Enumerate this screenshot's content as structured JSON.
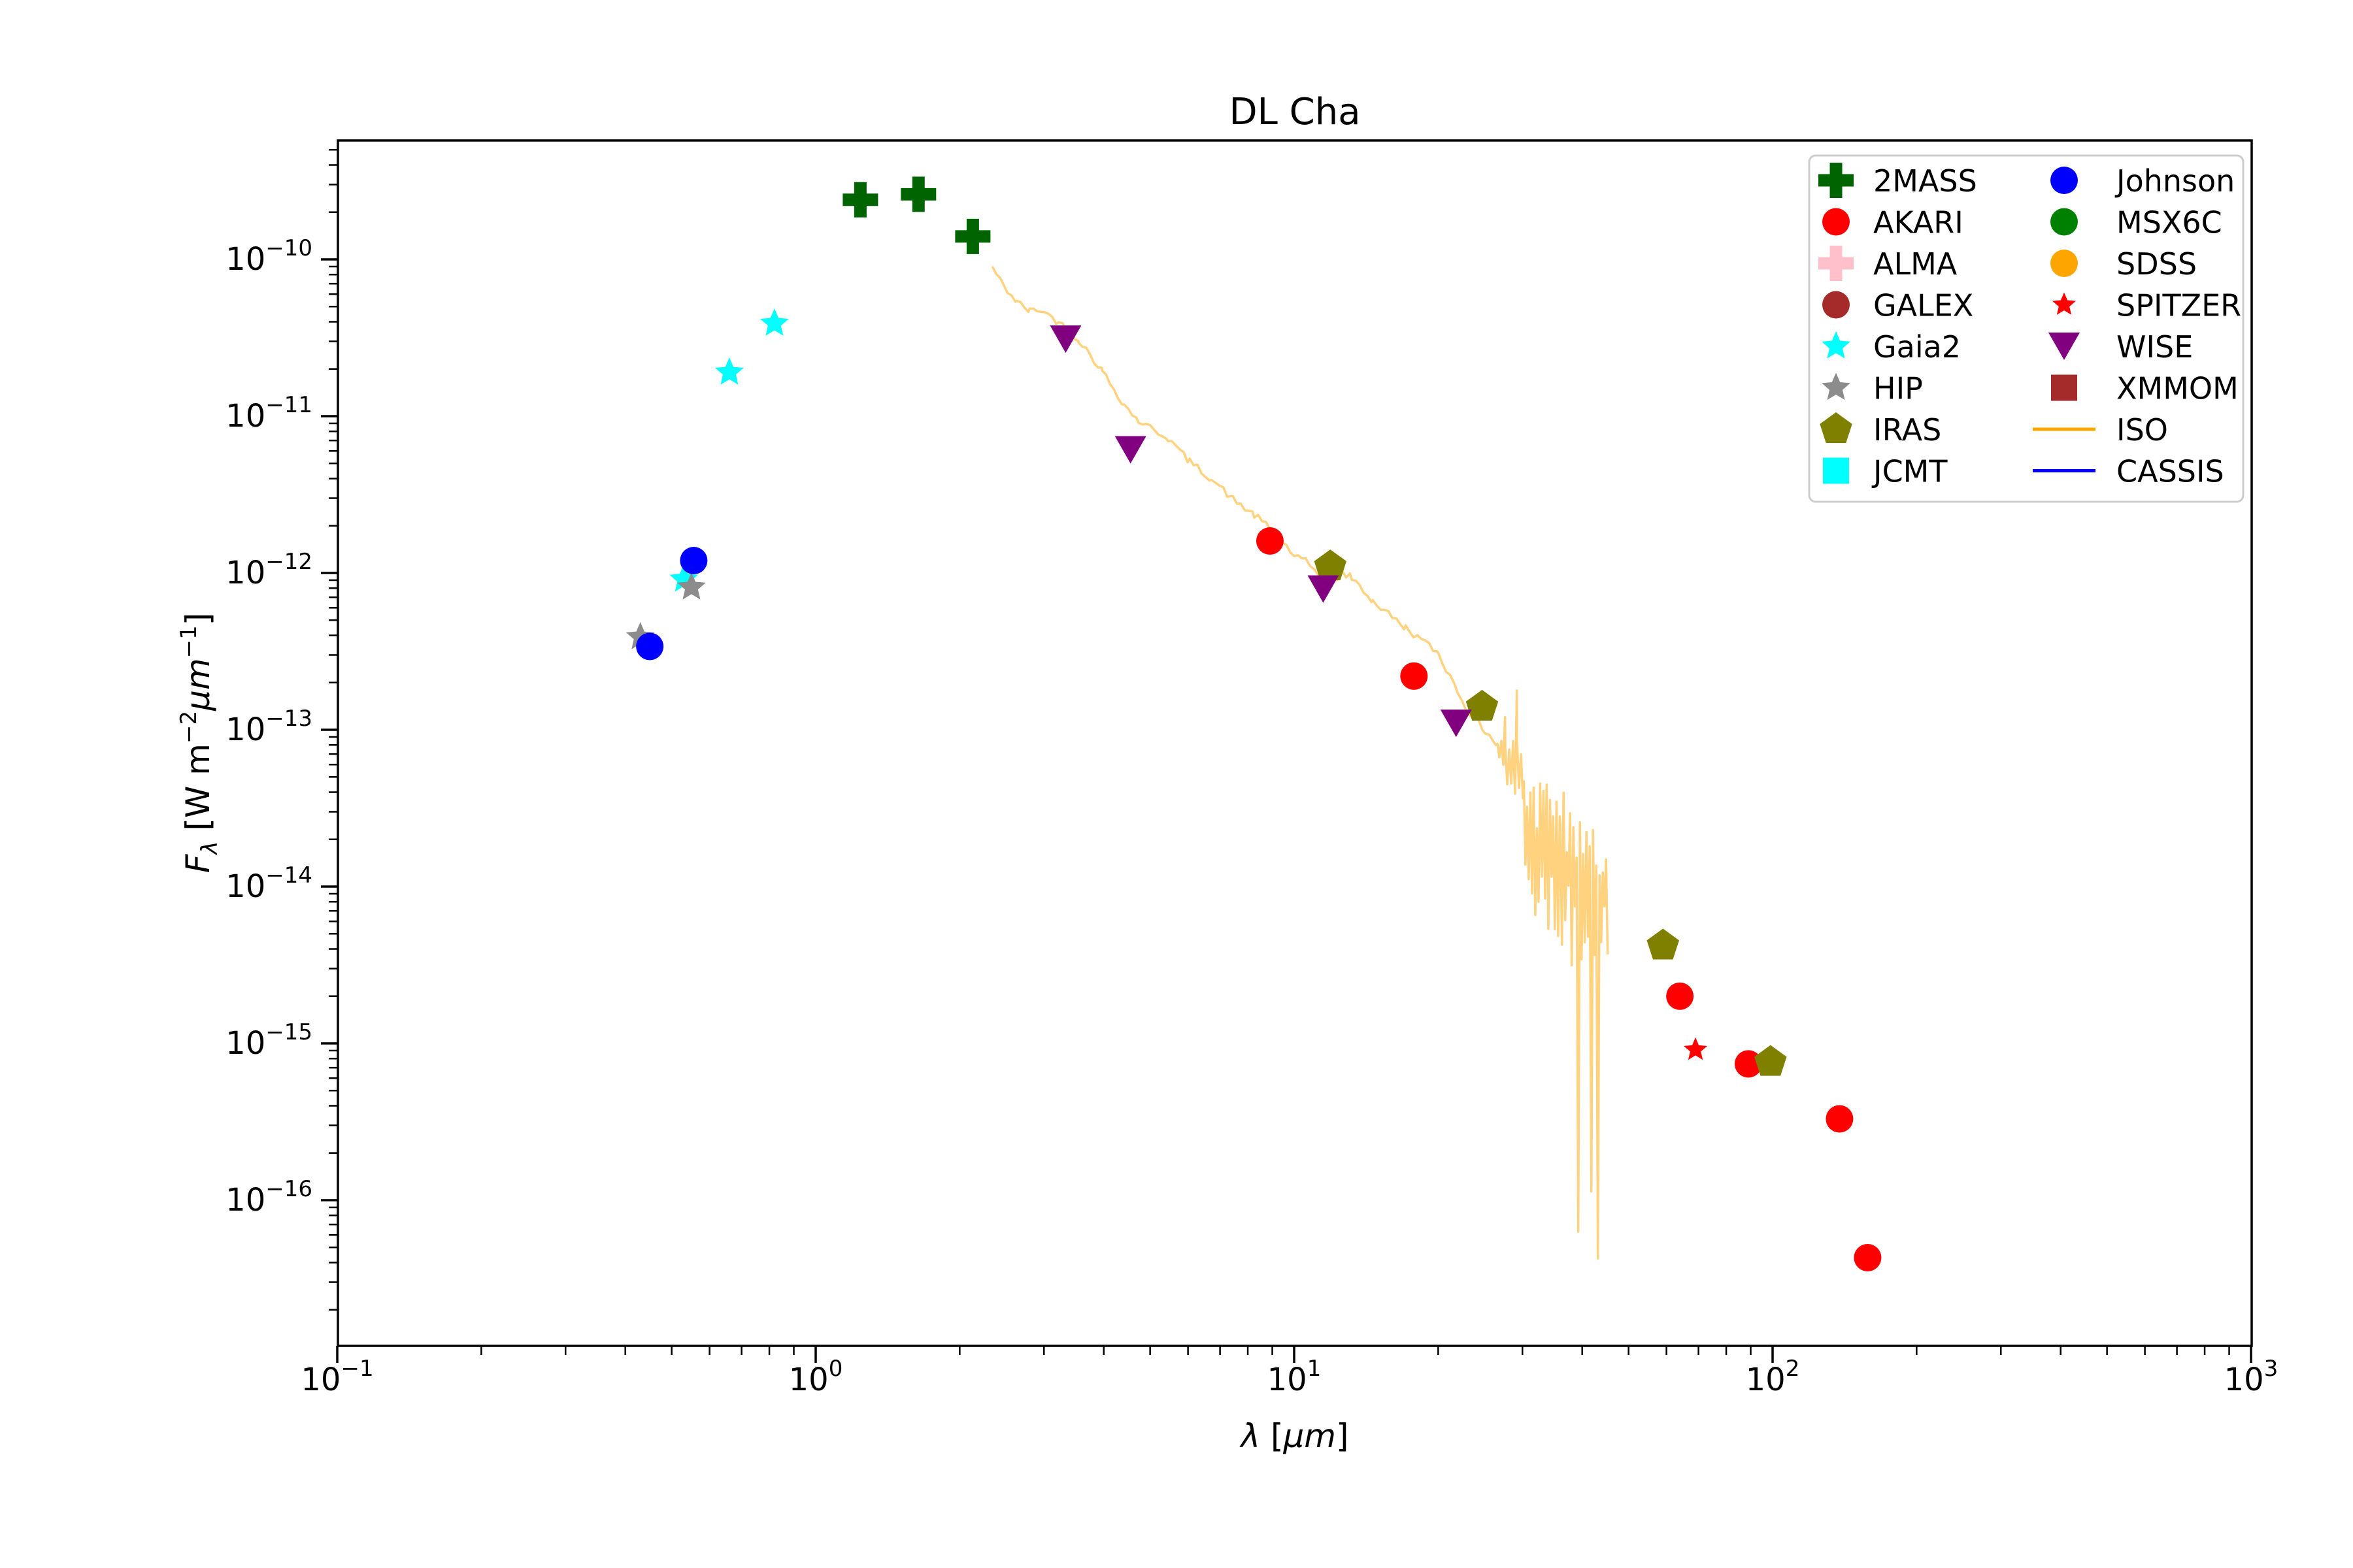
{
  "title": "DL Cha",
  "axes": {
    "xlabel": "λ [μm]",
    "ylabel": "Fλ [W m−2μm−1]",
    "xlabel_parts": [
      {
        "t": "λ",
        "italic": true
      },
      {
        "t": " [",
        "italic": false
      },
      {
        "t": "μm",
        "italic": true
      },
      {
        "t": "]",
        "italic": false
      }
    ],
    "ylabel_parts": [
      {
        "t": "F",
        "italic": true
      },
      {
        "t": "λ",
        "italic": true,
        "sub": true
      },
      {
        "t": " [W m",
        "italic": false
      },
      {
        "t": "−2",
        "sup": true
      },
      {
        "t": "μm",
        "italic": true
      },
      {
        "t": "−1",
        "sup": true
      },
      {
        "t": "]",
        "italic": false
      }
    ],
    "x_tick_exponents": [
      -1,
      0,
      1,
      2,
      3
    ],
    "y_tick_exponents": [
      -10,
      -11,
      -12,
      -13,
      -14,
      -15,
      -16
    ],
    "xlim": [
      0.1,
      1000
    ],
    "ylim": [
      1.2e-17,
      5.7e-10
    ],
    "x_scale": "log",
    "y_scale": "log",
    "grid": false
  },
  "chart_data": {
    "type": "scatter",
    "title": "DL Cha",
    "xlabel": "λ [μm]",
    "ylabel": "Fλ [W m−2μm−1]",
    "legend_position": "upper right",
    "legend_columns": 2,
    "series": [
      {
        "name": "2MASS",
        "marker": "plus",
        "color": "#006400",
        "points": [
          [
            1.24,
            2.4e-10
          ],
          [
            1.64,
            2.6e-10
          ],
          [
            2.13,
            1.4e-10
          ]
        ]
      },
      {
        "name": "AKARI",
        "marker": "circle",
        "color": "#ff0000",
        "points": [
          [
            8.9,
            1.6e-12
          ],
          [
            17.8,
            2.2e-13
          ],
          [
            64,
            2e-15
          ],
          [
            89,
            7.4e-16
          ],
          [
            138,
            3.3e-16
          ],
          [
            158,
            4.3e-17
          ]
        ]
      },
      {
        "name": "ALMA",
        "marker": "plus",
        "color": "#ffc0cb",
        "points": []
      },
      {
        "name": "GALEX",
        "marker": "circle",
        "color": "#a52a2a",
        "points": []
      },
      {
        "name": "Gaia2",
        "marker": "star",
        "color": "#00ffff",
        "points": [
          [
            0.53,
            9.1e-13
          ],
          [
            0.66,
            1.9e-11
          ],
          [
            0.82,
            3.9e-11
          ]
        ]
      },
      {
        "name": "HIP",
        "marker": "star",
        "color": "#8c8c8c",
        "points": [
          [
            0.43,
            3.9e-13
          ],
          [
            0.55,
            8.1e-13
          ]
        ]
      },
      {
        "name": "IRAS",
        "marker": "pentagon",
        "color": "#808000",
        "points": [
          [
            11.9,
            1.1e-12
          ],
          [
            24.7,
            1.4e-13
          ],
          [
            59,
            4.2e-15
          ],
          [
            99,
            7.6e-16
          ]
        ]
      },
      {
        "name": "JCMT",
        "marker": "square",
        "color": "#00ffff",
        "points": []
      },
      {
        "name": "Johnson",
        "marker": "circle",
        "color": "#0000ff",
        "points": [
          [
            0.45,
            3.4e-13
          ],
          [
            0.556,
            1.2e-12
          ]
        ]
      },
      {
        "name": "MSX6C",
        "marker": "circle",
        "color": "#008000",
        "points": []
      },
      {
        "name": "SDSS",
        "marker": "circle",
        "color": "#ffa500",
        "points": []
      },
      {
        "name": "SPITZER",
        "marker": "star_small",
        "color": "#ff0000",
        "points": [
          [
            69,
            9.1e-16
          ]
        ]
      },
      {
        "name": "WISE",
        "marker": "triangle_down",
        "color": "#800080",
        "points": [
          [
            3.33,
            3.1e-11
          ],
          [
            4.55,
            6.1e-12
          ],
          [
            11.5,
            7.9e-13
          ],
          [
            21.8,
            1.1e-13
          ]
        ]
      },
      {
        "name": "XMMOM",
        "marker": "square",
        "color": "#a52a2a",
        "points": []
      },
      {
        "name": "ISO",
        "marker": "line",
        "color": "#ffa500",
        "points": []
      },
      {
        "name": "CASSIS",
        "marker": "line",
        "color": "#0000ff",
        "points": []
      }
    ],
    "iso_spectrum": {
      "color": "#ffa500",
      "plot_opacity": 0.5,
      "continuum_log": [
        [
          2.34,
          -10.05
        ],
        [
          2.47,
          -10.17
        ],
        [
          2.63,
          -10.27
        ],
        [
          2.8,
          -10.33
        ],
        [
          2.95,
          -10.32
        ],
        [
          3.22,
          -10.4
        ],
        [
          3.54,
          -10.51
        ],
        [
          3.97,
          -10.71
        ],
        [
          4.42,
          -10.93
        ],
        [
          4.73,
          -11.03
        ],
        [
          5.45,
          -11.14
        ],
        [
          6.05,
          -11.29
        ],
        [
          6.72,
          -11.4
        ],
        [
          7.45,
          -11.53
        ],
        [
          8.25,
          -11.63
        ],
        [
          9.1,
          -11.74
        ],
        [
          10.0,
          -11.89
        ],
        [
          10.6,
          -11.93
        ],
        [
          11.3,
          -12.01
        ],
        [
          12.05,
          -12.05
        ],
        [
          12.6,
          -12.0
        ],
        [
          13.2,
          -12.03
        ],
        [
          14.6,
          -12.18
        ],
        [
          17.1,
          -12.35
        ],
        [
          20.0,
          -12.51
        ],
        [
          22.0,
          -12.76
        ],
        [
          23.4,
          -12.91
        ],
        [
          24.3,
          -12.96
        ],
        [
          25.1,
          -13.01
        ],
        [
          25.9,
          -13.05
        ],
        [
          26.6,
          -13.11
        ]
      ],
      "noise_zones": [
        {
          "lam0": 26.6,
          "lam1": 30.2,
          "base0": -13.12,
          "base1": -13.31,
          "halfband0": 0.06,
          "halfband1": 0.36,
          "spikes_up": [
            {
              "lam": 27.6,
              "top": -12.92
            },
            {
              "lam": 29.2,
              "top": -12.75
            }
          ]
        },
        {
          "lam0": 30.2,
          "lam1": 36.0,
          "center0": -13.7,
          "center1": -13.9,
          "halfband": 0.48,
          "deep_p": 0.04,
          "deep_lo": -15.6
        },
        {
          "lam0": 36.0,
          "lam1": 45.5,
          "center0": -13.93,
          "center1": -14.05,
          "halfband": 0.56,
          "deep_p": 0.18,
          "deep_lo": -16.55
        }
      ],
      "lam_end": 45.5
    }
  }
}
